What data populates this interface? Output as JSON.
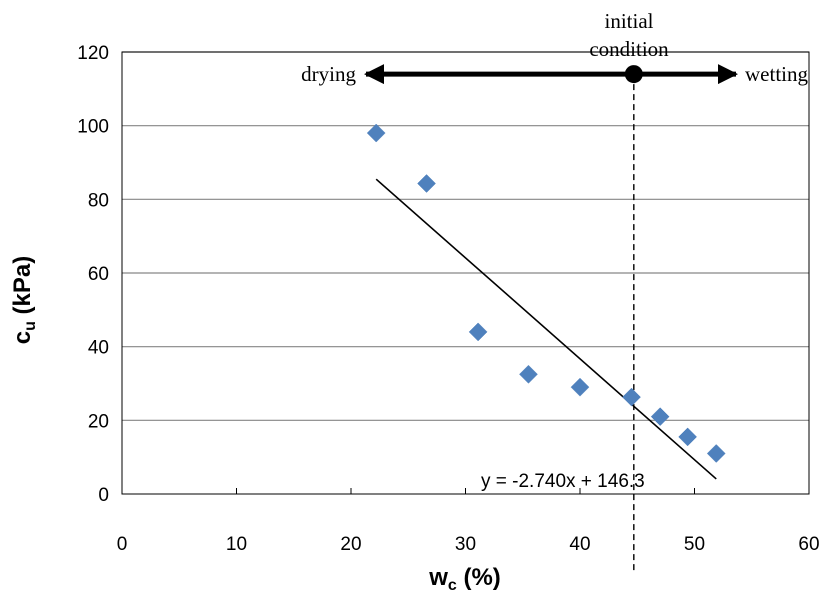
{
  "chart_data": {
    "type": "scatter",
    "title": "",
    "xlabel": {
      "main": "w",
      "sub": "c",
      "rest": " (%)"
    },
    "ylabel": {
      "main": "c",
      "sub": "u",
      "rest": " (kPa)"
    },
    "xlim": [
      0,
      60
    ],
    "ylim": [
      0,
      120
    ],
    "x_ticks": [
      "0",
      "10",
      "20",
      "30",
      "40",
      "50",
      "60"
    ],
    "y_ticks": [
      "0",
      "20",
      "40",
      "60",
      "80",
      "100",
      "120"
    ],
    "grid": "horizontal",
    "points": [
      {
        "x": 22.2,
        "y": 98
      },
      {
        "x": 26.6,
        "y": 84.3
      },
      {
        "x": 31.1,
        "y": 44
      },
      {
        "x": 35.5,
        "y": 32.5
      },
      {
        "x": 40.0,
        "y": 29
      },
      {
        "x": 44.5,
        "y": 26.3
      },
      {
        "x": 47.0,
        "y": 21
      },
      {
        "x": 49.4,
        "y": 15.5
      },
      {
        "x": 51.9,
        "y": 11
      }
    ],
    "marker_color": "#4f81bd",
    "trendline": {
      "slope": -2.74,
      "intercept": 146.3,
      "x_range": [
        22.2,
        51.9
      ],
      "label": "y = -2.740x + 146.3"
    },
    "reference_line": {
      "x": 44.7,
      "style": "dashed"
    },
    "annotations": {
      "initial_condition": "initial\ncondition",
      "drying": "drying",
      "wetting": "wetting",
      "arrow_y": 114
    }
  }
}
